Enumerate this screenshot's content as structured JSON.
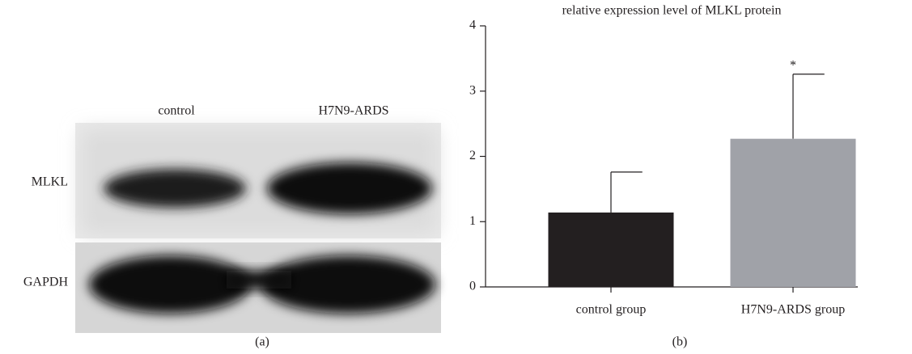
{
  "panel_a": {
    "columns": [
      "control",
      "H7N9-ARDS"
    ],
    "rows": [
      "MLKL",
      "GAPDH"
    ],
    "caption": "(a)"
  },
  "chart_data": {
    "type": "bar",
    "title": "relative expression level of MLKL protein",
    "categories": [
      "control group",
      "H7N9-ARDS group"
    ],
    "values": [
      1.14,
      2.27
    ],
    "errors": [
      0.62,
      0.99
    ],
    "colors": [
      "#231f20",
      "#a0a2a8"
    ],
    "annotations": [
      null,
      "*"
    ],
    "ylim": [
      0,
      4
    ],
    "yticks": [
      0,
      1,
      2,
      3,
      4
    ],
    "grid": false,
    "caption": "(b)"
  }
}
